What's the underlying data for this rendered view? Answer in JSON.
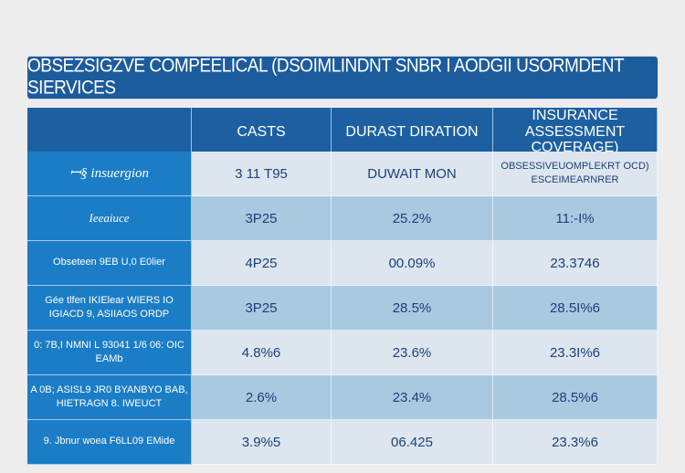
{
  "title": "OBSEZSIGZVE COMPEELICAL (DSOIMLINDNT SNBR I AODGII USORMDENT SIERVICES",
  "headers": [
    "",
    "CASTS",
    "DURAST DIRATION",
    "INSURANCE ASSESSMENT COVERAGE)"
  ],
  "rows": [
    {
      "label": "insuergion",
      "c1": "3 11 T95",
      "c2": "DUWAIT MON",
      "c3": "OBSESSIVEUOMPLEKRT OCD) ESCEIMEARNRER"
    },
    {
      "label": "Ieeaiuce",
      "c1": "3P25",
      "c2": "25.2%",
      "c3": "11:-I%"
    },
    {
      "label": "Obseteen 9EB U,0 E0lier",
      "c1": "4P25",
      "c2": "00.09%",
      "c3": "23.3746"
    },
    {
      "label": "Gée tlfen IKIElear WIERS IO IGIACD 9, ASIIAOS ORDP",
      "c1": "3P25",
      "c2": "28.5%",
      "c3": "28.5I%6"
    },
    {
      "label": "0: 7B,I NMNI L 93041 1/6 06: OIC EAMb",
      "c1": "4.8%6",
      "c2": "23.6%",
      "c3": "23.3I%6"
    },
    {
      "label": "A 0B; ASISL9 JR0 BYANBYO BAB, HIETRAGN 8. IWEUCT",
      "c1": "2.6%",
      "c2": "23.4%",
      "c3": "28.5%6"
    },
    {
      "label": "9. Jbnur woea F6LL09 EMide",
      "c1": "3.9%5",
      "c2": "06.425",
      "c3": "23.3%6"
    }
  ]
}
